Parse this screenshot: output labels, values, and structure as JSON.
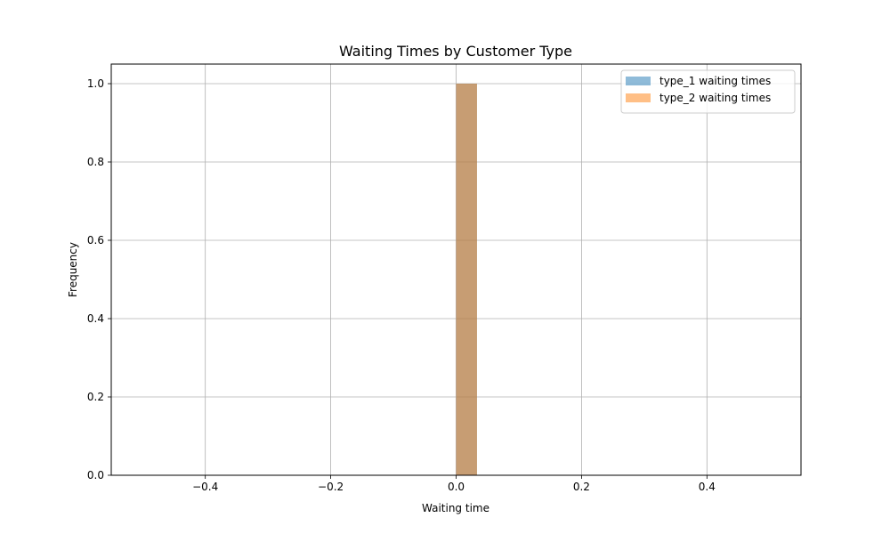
{
  "chart_data": {
    "type": "bar",
    "title": "Waiting Times by Customer Type",
    "xlabel": "Waiting time",
    "ylabel": "Frequency",
    "xlim": [
      -0.55,
      0.55
    ],
    "ylim": [
      0,
      1.05
    ],
    "x_ticks": [
      "−0.4",
      "−0.2",
      "0.0",
      "0.2",
      "0.4"
    ],
    "x_tick_values": [
      -0.4,
      -0.2,
      0.0,
      0.2,
      0.4
    ],
    "y_ticks": [
      "0.0",
      "0.2",
      "0.4",
      "0.6",
      "0.8",
      "1.0"
    ],
    "y_tick_values": [
      0.0,
      0.2,
      0.4,
      0.6,
      0.8,
      1.0
    ],
    "grid": true,
    "legend_position": "top-right",
    "series": [
      {
        "name": "type_1 waiting times",
        "color": "#1f77b4",
        "opacity": 0.5,
        "bins": [
          {
            "start": 0.0,
            "end": 0.0333,
            "count": 1
          }
        ]
      },
      {
        "name": "type_2 waiting times",
        "color": "#ff7f0e",
        "opacity": 0.5,
        "bins": [
          {
            "start": 0.0,
            "end": 0.0333,
            "count": 1
          }
        ]
      }
    ]
  }
}
